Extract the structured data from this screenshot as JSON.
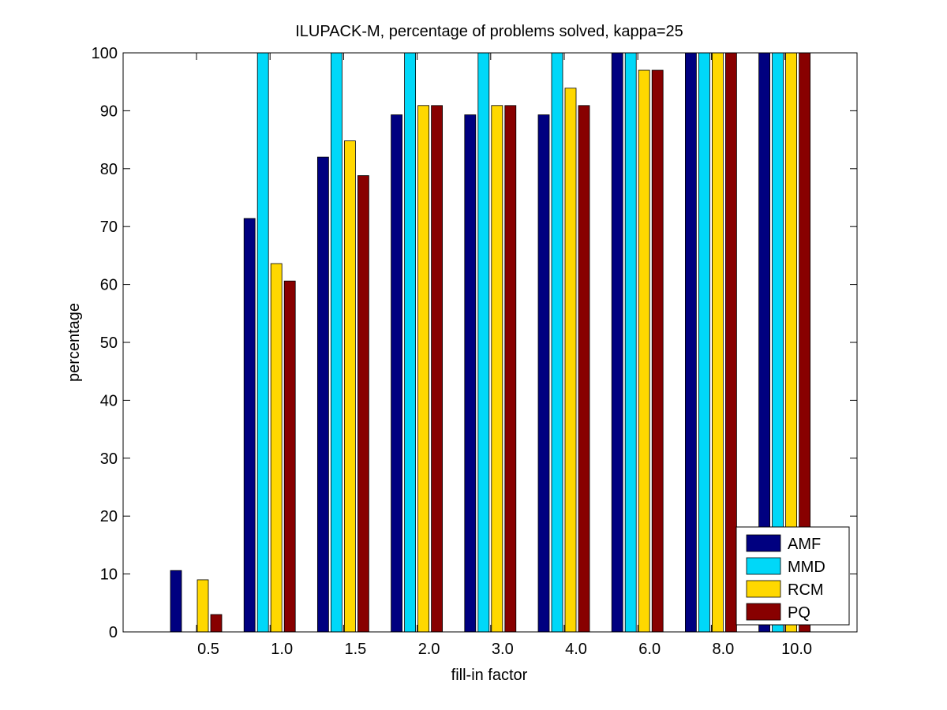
{
  "chart_data": {
    "type": "bar",
    "title": "ILUPACK-M, percentage of problems solved, kappa=25",
    "xlabel": "fill-in factor",
    "ylabel": "percentage",
    "ylim": [
      0,
      100
    ],
    "yticks": [
      0,
      10,
      20,
      30,
      40,
      50,
      60,
      70,
      80,
      90,
      100
    ],
    "categories": [
      "0.5",
      "1.0",
      "1.5",
      "2.0",
      "3.0",
      "4.0",
      "6.0",
      "8.0",
      "10.0"
    ],
    "legend_position": "bottom-right",
    "grid": false,
    "series": [
      {
        "name": "AMF",
        "color": "#000080",
        "values": [
          10.6,
          71.4,
          82.0,
          89.3,
          89.3,
          89.3,
          100,
          100,
          100
        ]
      },
      {
        "name": "MMD",
        "color": "#00d8f8",
        "values": [
          0,
          100,
          100,
          100,
          100,
          100,
          100,
          100,
          100
        ]
      },
      {
        "name": "RCM",
        "color": "#ffd800",
        "values": [
          9.0,
          63.6,
          84.8,
          90.9,
          90.9,
          93.9,
          97.0,
          100,
          100
        ]
      },
      {
        "name": "PQ",
        "color": "#880000",
        "values": [
          3.0,
          60.6,
          78.8,
          90.9,
          90.9,
          90.9,
          97.0,
          100,
          100
        ]
      }
    ]
  }
}
